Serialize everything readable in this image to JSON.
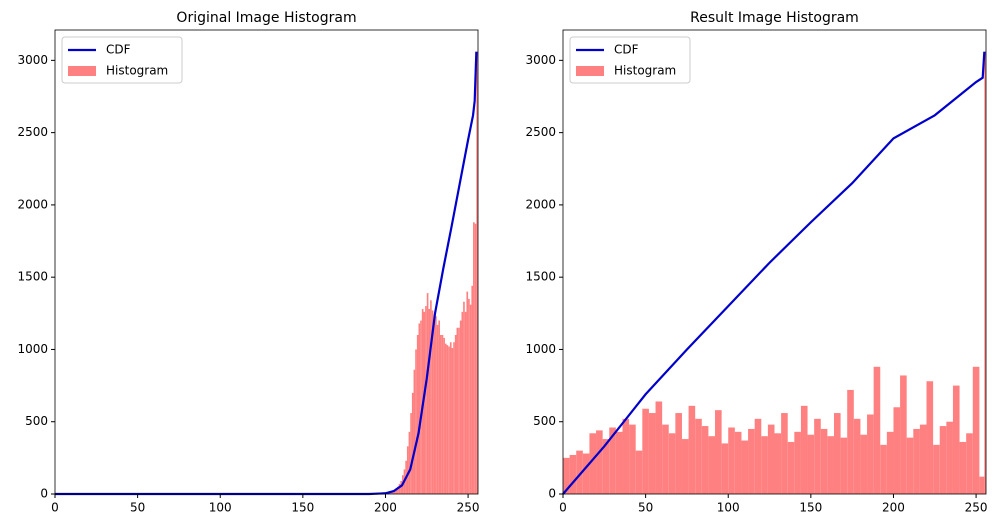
{
  "chart_data": [
    {
      "type": "histogram",
      "title": "Original Image Histogram",
      "legend": "upper left",
      "xlim": [
        0,
        256
      ],
      "xticks": [
        0,
        50,
        100,
        150,
        200,
        250
      ],
      "ylim": [
        0,
        3210
      ],
      "yticks": [
        0,
        500,
        1000,
        1500,
        2000,
        2500,
        3000
      ],
      "series": [
        {
          "name": "CDF",
          "type": "line",
          "color": "#0000cc",
          "x": [
            0,
            190,
            200,
            205,
            210,
            215,
            220,
            225,
            230,
            235,
            240,
            245,
            250,
            253,
            254,
            255
          ],
          "values": [
            0,
            0,
            5,
            20,
            60,
            170,
            420,
            800,
            1250,
            1560,
            1850,
            2150,
            2450,
            2620,
            2720,
            3060
          ]
        },
        {
          "name": "Histogram",
          "type": "histogram",
          "color": "#ff8080",
          "bins": [
            0,
            200,
            201,
            202,
            203,
            204,
            205,
            206,
            207,
            208,
            209,
            210,
            211,
            212,
            213,
            214,
            215,
            216,
            217,
            218,
            219,
            220,
            221,
            222,
            223,
            224,
            225,
            226,
            227,
            228,
            229,
            230,
            231,
            232,
            233,
            234,
            235,
            236,
            237,
            238,
            239,
            240,
            241,
            242,
            243,
            244,
            245,
            246,
            247,
            248,
            249,
            250,
            251,
            252,
            253,
            254,
            255,
            256
          ],
          "values": [
            0,
            5,
            8,
            10,
            15,
            20,
            30,
            40,
            50,
            70,
            90,
            130,
            170,
            230,
            330,
            430,
            560,
            700,
            860,
            1000,
            1100,
            1180,
            1200,
            1280,
            1260,
            1300,
            1390,
            1280,
            1340,
            1270,
            1200,
            1230,
            1170,
            1200,
            1100,
            1100,
            1080,
            1040,
            1030,
            1020,
            1050,
            1010,
            1050,
            1100,
            1150,
            1150,
            1200,
            1260,
            1330,
            1260,
            1400,
            1350,
            1310,
            1440,
            1880,
            1870,
            3060
          ]
        }
      ]
    },
    {
      "type": "histogram",
      "title": "Result Image Histogram",
      "legend": "upper left",
      "xlim": [
        0,
        256
      ],
      "xticks": [
        0,
        50,
        100,
        150,
        200,
        250
      ],
      "ylim": [
        0,
        3210
      ],
      "yticks": [
        0,
        500,
        1000,
        1500,
        2000,
        2500,
        3000
      ],
      "series": [
        {
          "name": "CDF",
          "type": "line",
          "color": "#0000cc",
          "x": [
            0,
            25,
            50,
            75,
            100,
            125,
            150,
            175,
            200,
            225,
            250,
            254,
            255
          ],
          "values": [
            0,
            330,
            690,
            1000,
            1300,
            1600,
            1880,
            2150,
            2460,
            2620,
            2850,
            2880,
            3060
          ]
        },
        {
          "name": "Histogram",
          "type": "histogram",
          "color": "#ff8080",
          "bins": [
            0,
            4,
            8,
            12,
            16,
            20,
            24,
            28,
            32,
            36,
            40,
            44,
            48,
            52,
            56,
            60,
            64,
            68,
            72,
            76,
            80,
            84,
            88,
            92,
            96,
            100,
            104,
            108,
            112,
            116,
            120,
            124,
            128,
            132,
            136,
            140,
            144,
            148,
            152,
            156,
            160,
            164,
            168,
            172,
            176,
            180,
            184,
            188,
            192,
            196,
            200,
            204,
            208,
            212,
            216,
            220,
            224,
            228,
            232,
            236,
            240,
            244,
            248,
            252,
            255,
            256
          ],
          "values": [
            250,
            270,
            300,
            280,
            420,
            440,
            380,
            460,
            430,
            520,
            480,
            300,
            590,
            560,
            640,
            480,
            420,
            560,
            380,
            610,
            520,
            470,
            400,
            580,
            350,
            460,
            430,
            370,
            450,
            520,
            400,
            480,
            420,
            560,
            360,
            430,
            610,
            410,
            520,
            450,
            400,
            560,
            390,
            720,
            520,
            410,
            550,
            880,
            340,
            430,
            600,
            820,
            390,
            450,
            480,
            780,
            340,
            470,
            500,
            750,
            360,
            420,
            880,
            120,
            3060
          ]
        }
      ]
    }
  ]
}
